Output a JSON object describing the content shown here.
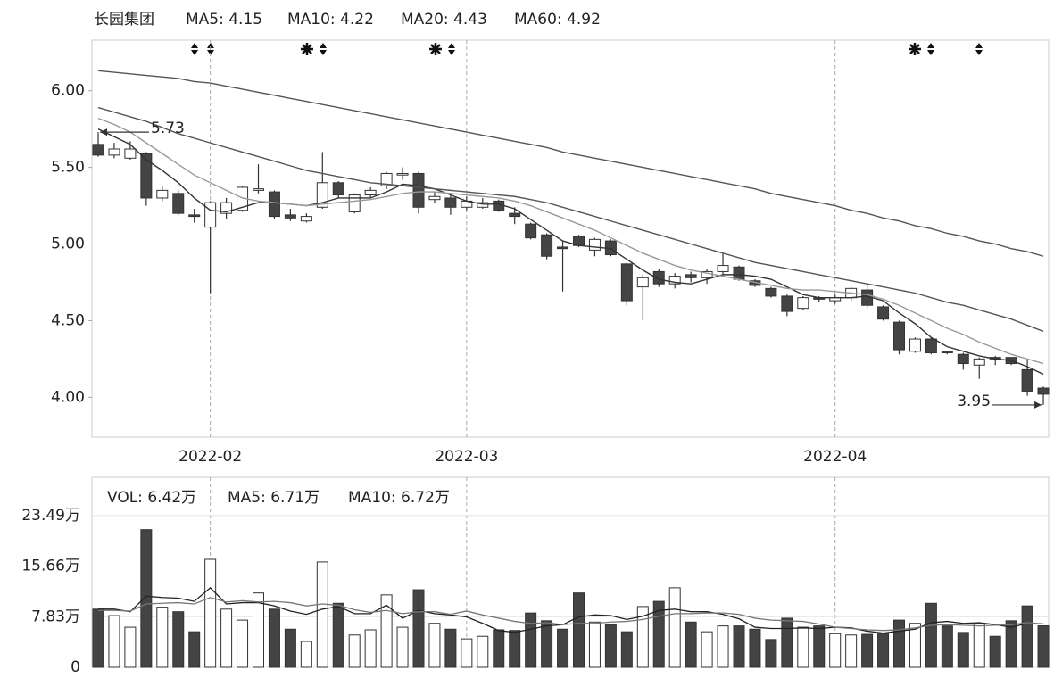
{
  "chart_data": [
    {
      "type": "candlestick",
      "title": "长园集团",
      "categories": [
        null,
        null,
        null,
        null,
        null,
        null,
        null,
        "2022-02",
        null,
        null,
        null,
        null,
        null,
        null,
        null,
        null,
        null,
        null,
        null,
        null,
        null,
        null,
        null,
        "2022-03",
        null,
        null,
        null,
        null,
        null,
        null,
        null,
        null,
        null,
        null,
        null,
        null,
        null,
        null,
        null,
        null,
        null,
        null,
        null,
        null,
        null,
        null,
        "2022-04",
        null,
        null,
        null,
        null,
        null,
        null,
        null,
        null,
        null,
        null,
        null,
        null,
        null
      ],
      "open": [
        5.65,
        5.58,
        5.56,
        5.59,
        5.3,
        5.33,
        5.19,
        5.11,
        5.2,
        5.22,
        5.35,
        5.34,
        5.19,
        5.15,
        5.24,
        5.4,
        5.21,
        5.32,
        5.38,
        5.45,
        5.46,
        5.29,
        5.3,
        5.24,
        5.24,
        5.28,
        5.2,
        5.13,
        5.06,
        4.98,
        5.05,
        4.96,
        5.02,
        4.87,
        4.72,
        4.82,
        4.74,
        4.8,
        4.78,
        4.82,
        4.85,
        4.76,
        4.71,
        4.66,
        4.58,
        4.65,
        4.63,
        4.65,
        4.7,
        4.59,
        4.49,
        4.3,
        4.38,
        4.3,
        4.28,
        4.21,
        4.26,
        4.26,
        4.18,
        4.06
      ],
      "high": [
        5.73,
        5.66,
        5.67,
        5.6,
        5.38,
        5.35,
        5.23,
        5.28,
        5.3,
        5.38,
        5.52,
        5.35,
        5.23,
        5.2,
        5.6,
        5.41,
        5.33,
        5.37,
        5.47,
        5.5,
        5.47,
        5.34,
        5.32,
        5.31,
        5.3,
        5.29,
        5.24,
        5.14,
        5.07,
        5.02,
        5.06,
        5.04,
        5.03,
        4.88,
        4.8,
        4.84,
        4.81,
        4.82,
        4.84,
        4.94,
        4.86,
        4.77,
        4.72,
        4.67,
        4.66,
        4.66,
        4.67,
        4.72,
        4.73,
        4.6,
        4.5,
        4.39,
        4.39,
        4.3,
        4.29,
        4.26,
        4.27,
        4.26,
        4.25,
        4.07
      ],
      "low": [
        5.57,
        5.56,
        5.55,
        5.25,
        5.28,
        5.19,
        5.14,
        4.68,
        5.16,
        5.21,
        5.33,
        5.16,
        5.15,
        5.14,
        5.23,
        5.3,
        5.2,
        5.3,
        5.36,
        5.42,
        5.2,
        5.27,
        5.19,
        5.22,
        5.23,
        5.21,
        5.13,
        5.03,
        4.9,
        4.69,
        4.98,
        4.92,
        4.92,
        4.6,
        4.5,
        4.72,
        4.71,
        4.75,
        4.74,
        4.8,
        4.76,
        4.72,
        4.65,
        4.53,
        4.57,
        4.62,
        4.61,
        4.63,
        4.58,
        4.5,
        4.28,
        4.29,
        4.28,
        4.28,
        4.18,
        4.12,
        4.21,
        4.21,
        4.01,
        3.95
      ],
      "close": [
        5.58,
        5.62,
        5.62,
        5.3,
        5.35,
        5.2,
        5.18,
        5.27,
        5.27,
        5.37,
        5.36,
        5.18,
        5.17,
        5.18,
        5.4,
        5.32,
        5.32,
        5.35,
        5.46,
        5.46,
        5.24,
        5.31,
        5.24,
        5.28,
        5.27,
        5.22,
        5.18,
        5.04,
        4.92,
        4.97,
        4.99,
        5.03,
        4.93,
        4.63,
        4.78,
        4.74,
        4.79,
        4.78,
        4.82,
        4.86,
        4.77,
        4.73,
        4.66,
        4.56,
        4.65,
        4.64,
        4.65,
        4.71,
        4.6,
        4.51,
        4.31,
        4.38,
        4.29,
        4.29,
        4.22,
        4.25,
        4.25,
        4.22,
        4.04,
        4.02
      ],
      "series": [
        {
          "name": "MA5: 4.15",
          "color": "#333333",
          "values": [
            5.75,
            5.7,
            5.65,
            5.55,
            5.48,
            5.4,
            5.3,
            5.22,
            5.21,
            5.24,
            5.27,
            5.27,
            5.26,
            5.25,
            5.27,
            5.3,
            5.3,
            5.3,
            5.34,
            5.39,
            5.38,
            5.36,
            5.32,
            5.28,
            5.26,
            5.26,
            5.23,
            5.16,
            5.09,
            5.02,
            4.99,
            4.98,
            4.97,
            4.9,
            4.83,
            4.77,
            4.75,
            4.74,
            4.77,
            4.8,
            4.8,
            4.79,
            4.77,
            4.72,
            4.67,
            4.65,
            4.65,
            4.65,
            4.66,
            4.63,
            4.55,
            4.48,
            4.39,
            4.33,
            4.3,
            4.27,
            4.25,
            4.24,
            4.2,
            4.15
          ]
        },
        {
          "name": "MA10: 4.22",
          "color": "#999999",
          "values": [
            5.82,
            5.78,
            5.73,
            5.66,
            5.59,
            5.52,
            5.45,
            5.4,
            5.35,
            5.3,
            5.28,
            5.27,
            5.26,
            5.25,
            5.26,
            5.27,
            5.28,
            5.29,
            5.31,
            5.33,
            5.34,
            5.34,
            5.33,
            5.32,
            5.31,
            5.3,
            5.28,
            5.25,
            5.21,
            5.17,
            5.13,
            5.09,
            5.04,
            4.99,
            4.94,
            4.9,
            4.86,
            4.83,
            4.81,
            4.79,
            4.77,
            4.75,
            4.73,
            4.71,
            4.7,
            4.7,
            4.69,
            4.68,
            4.67,
            4.64,
            4.6,
            4.55,
            4.5,
            4.45,
            4.41,
            4.36,
            4.32,
            4.28,
            4.25,
            4.22
          ]
        },
        {
          "name": "MA20: 4.43",
          "color": "#555555",
          "values": [
            5.89,
            5.86,
            5.83,
            5.8,
            5.76,
            5.72,
            5.69,
            5.66,
            5.63,
            5.6,
            5.57,
            5.54,
            5.51,
            5.48,
            5.46,
            5.44,
            5.42,
            5.4,
            5.39,
            5.38,
            5.37,
            5.36,
            5.35,
            5.34,
            5.33,
            5.32,
            5.31,
            5.29,
            5.27,
            5.24,
            5.21,
            5.18,
            5.15,
            5.12,
            5.09,
            5.06,
            5.03,
            5.0,
            4.97,
            4.94,
            4.91,
            4.88,
            4.86,
            4.84,
            4.82,
            4.8,
            4.78,
            4.76,
            4.74,
            4.72,
            4.7,
            4.68,
            4.65,
            4.62,
            4.6,
            4.57,
            4.54,
            4.51,
            4.47,
            4.43
          ]
        },
        {
          "name": "MA60: 4.92",
          "color": "#555555",
          "values": [
            6.13,
            6.12,
            6.11,
            6.1,
            6.09,
            6.08,
            6.06,
            6.05,
            6.03,
            6.01,
            5.99,
            5.97,
            5.95,
            5.93,
            5.91,
            5.89,
            5.87,
            5.85,
            5.83,
            5.81,
            5.79,
            5.77,
            5.75,
            5.73,
            5.71,
            5.69,
            5.67,
            5.65,
            5.63,
            5.6,
            5.58,
            5.56,
            5.54,
            5.52,
            5.5,
            5.48,
            5.46,
            5.44,
            5.42,
            5.4,
            5.38,
            5.36,
            5.33,
            5.31,
            5.29,
            5.27,
            5.25,
            5.22,
            5.2,
            5.17,
            5.15,
            5.12,
            5.1,
            5.07,
            5.05,
            5.02,
            5.0,
            4.97,
            4.95,
            4.92
          ]
        }
      ],
      "ylim": [
        3.74,
        6.33
      ],
      "yticks": [
        {
          "value": 4,
          "label": "4.00"
        },
        {
          "value": 4.5,
          "label": "4.50"
        },
        {
          "value": 5,
          "label": "5.00"
        },
        {
          "value": 5.5,
          "label": "5.50"
        },
        {
          "value": 6,
          "label": "6.00"
        }
      ],
      "annotations": [
        {
          "value": 5.73,
          "label": "5.73"
        },
        {
          "value": 3.95,
          "label": "3.95"
        }
      ],
      "grid": true
    },
    {
      "type": "bar",
      "series": [
        {
          "name": "VOL: 6.42万",
          "color": "#444444",
          "values": [
            9.0,
            8.0,
            6.2,
            21.3,
            9.3,
            8.6,
            5.5,
            16.7,
            9.0,
            7.3,
            11.5,
            9.0,
            5.9,
            4.0,
            16.3,
            9.9,
            5.0,
            5.8,
            11.2,
            6.2,
            12.0,
            6.8,
            5.9,
            4.4,
            4.8,
            5.8,
            5.7,
            8.4,
            7.2,
            5.9,
            11.5,
            7.0,
            6.6,
            5.5,
            9.4,
            10.2,
            12.3,
            7.0,
            5.5,
            6.4,
            6.4,
            5.9,
            4.3,
            7.6,
            6.2,
            6.4,
            5.2,
            5.0,
            5.1,
            5.2,
            7.3,
            6.8,
            9.9,
            6.4,
            5.4,
            6.8,
            4.8,
            7.2,
            9.5,
            6.42
          ]
        },
        {
          "name": "MA5: 6.71万",
          "type": "line",
          "color": "#222222",
          "values": [
            9.0,
            9.0,
            8.6,
            11.0,
            10.8,
            10.7,
            10.2,
            12.3,
            9.8,
            10.0,
            10.0,
            9.5,
            8.7,
            8.2,
            9.0,
            9.4,
            8.3,
            8.3,
            9.6,
            7.6,
            8.8,
            8.3,
            8.1,
            7.8,
            6.8,
            5.7,
            5.4,
            5.9,
            6.4,
            6.6,
            7.8,
            8.1,
            8.0,
            7.4,
            7.9,
            8.8,
            9.0,
            8.6,
            8.6,
            8.2,
            7.5,
            6.2,
            6.0,
            6.0,
            6.1,
            6.0,
            6.2,
            6.1,
            5.6,
            5.3,
            5.6,
            5.9,
            6.9,
            7.1,
            6.8,
            6.9,
            6.6,
            6.2,
            6.8,
            6.71
          ]
        },
        {
          "name": "MA10: 6.72万",
          "type": "line",
          "color": "#777777",
          "values": [
            8.8,
            8.8,
            8.7,
            9.8,
            9.9,
            10.0,
            9.8,
            10.8,
            10.1,
            10.3,
            10.1,
            10.2,
            10.0,
            9.5,
            9.8,
            9.6,
            8.9,
            8.5,
            8.8,
            8.3,
            8.6,
            8.6,
            8.2,
            8.7,
            8.1,
            7.6,
            7.1,
            6.8,
            6.9,
            6.6,
            6.8,
            6.8,
            7.0,
            7.1,
            7.4,
            7.9,
            8.3,
            8.3,
            8.4,
            8.4,
            8.2,
            7.6,
            7.3,
            7.2,
            7.1,
            6.7,
            6.2,
            6.0,
            5.8,
            5.7,
            5.8,
            6.1,
            6.5,
            6.6,
            6.5,
            6.4,
            6.5,
            6.6,
            6.9,
            6.72
          ]
        }
      ],
      "ylim": [
        0,
        29.4
      ],
      "yticks": [
        0,
        {
          "value": 7.83,
          "label": "7.83万"
        },
        {
          "value": 15.66,
          "label": "15.66万"
        },
        {
          "value": 23.49,
          "label": "23.49万"
        }
      ],
      "grid": true
    }
  ]
}
